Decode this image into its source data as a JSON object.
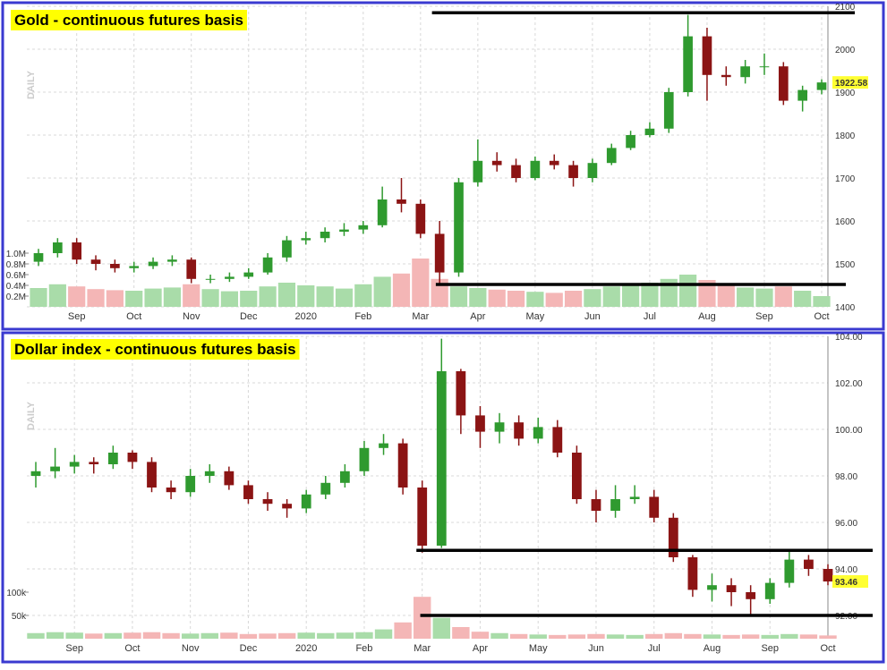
{
  "chart_data": [
    {
      "type": "candlestick",
      "title": "Gold - continuous futures basis",
      "side_label": "DAILY",
      "categories": [
        null,
        null,
        "Sep",
        null,
        null,
        "Oct",
        null,
        null,
        "Nov",
        null,
        null,
        "Dec",
        null,
        null,
        "2020",
        null,
        null,
        "Feb",
        null,
        null,
        "Mar",
        null,
        null,
        "Apr",
        null,
        null,
        "May",
        null,
        null,
        "Jun",
        null,
        null,
        "Jul",
        null,
        null,
        "Aug",
        null,
        null,
        "Sep",
        null,
        null,
        "Oct"
      ],
      "open": [
        1505,
        1525,
        1550,
        1510,
        1500,
        1490,
        1495,
        1505,
        1510,
        1465,
        1465,
        1470,
        1480,
        1515,
        1555,
        1560,
        1575,
        1580,
        1590,
        1650,
        1640,
        1570,
        1480,
        1690,
        1740,
        1730,
        1700,
        1740,
        1730,
        1700,
        1735,
        1770,
        1800,
        1815,
        1900,
        2030,
        1940,
        1935,
        1960,
        1960,
        1880,
        1905
      ],
      "high": [
        1535,
        1560,
        1560,
        1520,
        1510,
        1505,
        1515,
        1520,
        1515,
        1475,
        1480,
        1490,
        1525,
        1565,
        1575,
        1585,
        1595,
        1600,
        1680,
        1700,
        1650,
        1600,
        1700,
        1790,
        1760,
        1745,
        1750,
        1755,
        1740,
        1745,
        1780,
        1810,
        1830,
        1910,
        2080,
        2050,
        1960,
        1975,
        1990,
        1970,
        1915,
        1930
      ],
      "low": [
        1495,
        1515,
        1500,
        1485,
        1480,
        1480,
        1488,
        1495,
        1455,
        1455,
        1458,
        1465,
        1475,
        1505,
        1545,
        1550,
        1565,
        1570,
        1585,
        1620,
        1560,
        1455,
        1470,
        1680,
        1715,
        1690,
        1695,
        1720,
        1680,
        1690,
        1730,
        1765,
        1795,
        1805,
        1890,
        1880,
        1915,
        1920,
        1940,
        1870,
        1855,
        1895
      ],
      "close": [
        1525,
        1550,
        1510,
        1500,
        1490,
        1495,
        1505,
        1510,
        1465,
        1465,
        1470,
        1480,
        1515,
        1555,
        1560,
        1575,
        1580,
        1590,
        1650,
        1640,
        1570,
        1480,
        1690,
        1740,
        1730,
        1700,
        1740,
        1730,
        1700,
        1735,
        1770,
        1800,
        1815,
        1900,
        2030,
        1940,
        1935,
        1960,
        1960,
        1880,
        1905,
        1922.58
      ],
      "volume": [
        350000,
        420000,
        380000,
        330000,
        310000,
        300000,
        340000,
        360000,
        420000,
        330000,
        290000,
        300000,
        380000,
        450000,
        400000,
        380000,
        340000,
        420000,
        560000,
        620000,
        900000,
        520000,
        380000,
        350000,
        320000,
        300000,
        280000,
        260000,
        300000,
        330000,
        380000,
        420000,
        450000,
        520000,
        600000,
        500000,
        420000,
        360000,
        340000,
        380000,
        300000,
        200000
      ],
      "ylim": [
        1400,
        2100
      ],
      "yticks": [
        1400,
        1500,
        1600,
        1700,
        1800,
        1900,
        2000,
        2100
      ],
      "volume_ylim": [
        0,
        1000000
      ],
      "volume_ticks": [
        {
          "value": 200000,
          "label": "0.2M"
        },
        {
          "value": 400000,
          "label": "0.4M"
        },
        {
          "value": 600000,
          "label": "0.6M"
        },
        {
          "value": 800000,
          "label": "0.8M"
        },
        {
          "value": 1000000,
          "label": "1.0M"
        }
      ],
      "last_price": 1922.58,
      "hlines": [
        {
          "value": 2085,
          "x": 20.6
        },
        {
          "value": 1452,
          "x": 20.8
        }
      ],
      "colors": {
        "up": "#2f9a2f",
        "down": "#8b1414",
        "volume_up": "#a9dca9",
        "volume_down": "#f4b6b6"
      }
    },
    {
      "type": "candlestick",
      "title": "Dollar index - continuous futures basis",
      "side_label": "DAILY",
      "categories": [
        null,
        null,
        "Sep",
        null,
        null,
        "Oct",
        null,
        null,
        "Nov",
        null,
        null,
        "Dec",
        null,
        null,
        "2020",
        null,
        null,
        "Feb",
        null,
        null,
        "Mar",
        null,
        null,
        "Apr",
        null,
        null,
        "May",
        null,
        null,
        "Jun",
        null,
        null,
        "Jul",
        null,
        null,
        "Aug",
        null,
        null,
        "Sep",
        null,
        null,
        "Oct"
      ],
      "open": [
        98.0,
        98.2,
        98.4,
        98.6,
        98.5,
        99.0,
        98.6,
        97.5,
        97.3,
        98.0,
        98.2,
        97.6,
        97.0,
        96.8,
        96.6,
        97.2,
        97.7,
        98.2,
        99.2,
        99.4,
        97.5,
        95.0,
        102.5,
        100.6,
        99.9,
        100.3,
        99.6,
        100.1,
        99.0,
        97.0,
        96.5,
        97.0,
        97.1,
        96.2,
        94.5,
        93.1,
        93.3,
        93.0,
        92.7,
        93.4,
        94.4,
        94.0
      ],
      "high": [
        98.6,
        99.2,
        98.9,
        98.8,
        99.3,
        99.1,
        98.8,
        97.8,
        98.3,
        98.5,
        98.4,
        97.8,
        97.3,
        97.0,
        97.4,
        98.0,
        98.5,
        99.5,
        99.8,
        99.6,
        97.8,
        103.9,
        102.6,
        101.0,
        100.7,
        100.6,
        100.5,
        100.4,
        99.3,
        97.4,
        97.6,
        97.6,
        97.4,
        96.4,
        94.6,
        93.8,
        93.6,
        93.3,
        93.6,
        94.8,
        94.6,
        94.2
      ],
      "low": [
        97.5,
        97.9,
        98.1,
        98.1,
        98.3,
        98.3,
        97.3,
        97.0,
        97.1,
        97.7,
        97.4,
        96.8,
        96.5,
        96.2,
        96.4,
        97.0,
        97.5,
        98.0,
        98.9,
        97.2,
        94.7,
        94.9,
        99.8,
        99.2,
        99.4,
        99.3,
        99.4,
        98.8,
        96.8,
        96.0,
        96.2,
        96.8,
        96.0,
        94.3,
        92.8,
        92.6,
        92.4,
        92.0,
        92.5,
        93.2,
        93.7,
        93.3
      ],
      "close": [
        98.2,
        98.4,
        98.6,
        98.5,
        99.0,
        98.6,
        97.5,
        97.3,
        98.0,
        98.2,
        97.6,
        97.0,
        96.8,
        96.6,
        97.2,
        97.7,
        98.2,
        99.2,
        99.4,
        97.5,
        95.0,
        102.5,
        100.6,
        99.9,
        100.3,
        99.6,
        100.1,
        99.0,
        97.0,
        96.5,
        97.0,
        97.1,
        96.2,
        94.5,
        93.1,
        93.3,
        93.0,
        92.7,
        93.4,
        94.4,
        94.0,
        93.46
      ],
      "volume": [
        12000,
        14000,
        13000,
        11000,
        12000,
        13000,
        14000,
        12000,
        11000,
        12000,
        13000,
        10000,
        11000,
        12000,
        13000,
        12000,
        13000,
        14000,
        20000,
        35000,
        90000,
        45000,
        25000,
        15000,
        12000,
        10000,
        9000,
        8000,
        9000,
        10000,
        9000,
        8000,
        10000,
        12000,
        10000,
        9000,
        8000,
        9000,
        8000,
        10000,
        9000,
        7000
      ],
      "ylim": [
        91,
        104
      ],
      "yticks": [
        {
          "value": 92,
          "label": "92.00"
        },
        {
          "value": 94,
          "label": "94.00"
        },
        {
          "value": 96,
          "label": "96.00"
        },
        {
          "value": 98,
          "label": "98.00"
        },
        {
          "value": 100,
          "label": "100.00"
        },
        {
          "value": 102,
          "label": "102.00"
        },
        {
          "value": 104,
          "label": "104.00"
        }
      ],
      "volume_ylim": [
        0,
        100000
      ],
      "volume_ticks": [
        {
          "value": 50000,
          "label": "50k"
        },
        {
          "value": 100000,
          "label": "100k"
        }
      ],
      "last_price": 93.46,
      "hlines": [
        {
          "value": 94.8,
          "x": 19.7
        },
        {
          "value": 92.0,
          "x": 19.9
        }
      ],
      "colors": {
        "up": "#2f9a2f",
        "down": "#8b1414",
        "volume_up": "#a9dca9",
        "volume_down": "#f4b6b6"
      }
    }
  ]
}
